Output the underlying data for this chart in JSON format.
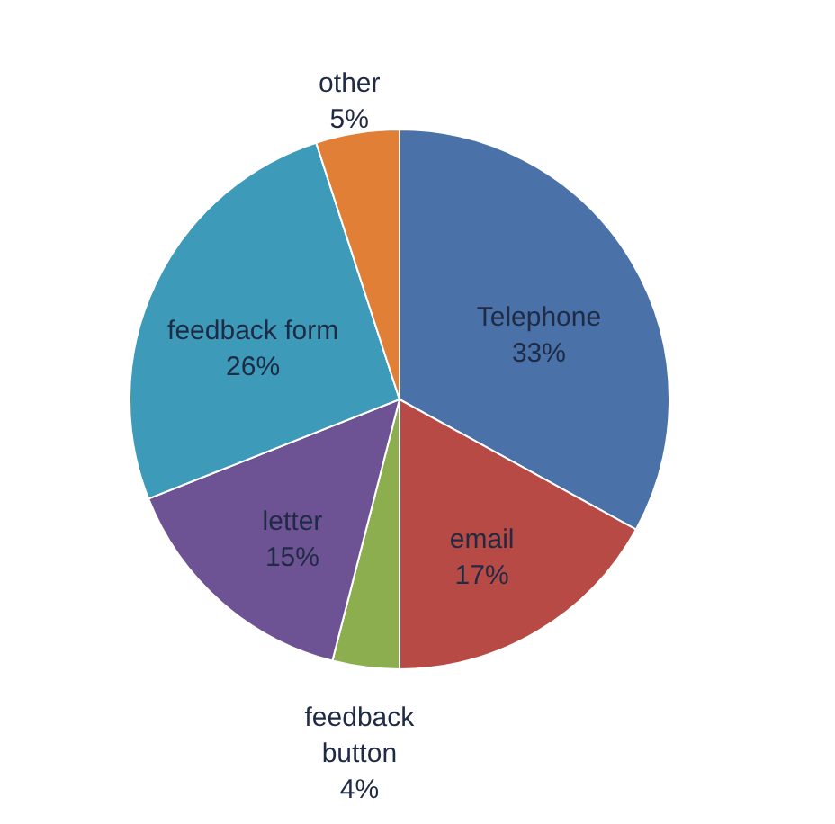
{
  "chart_data": {
    "type": "pie",
    "categories": [
      "Telephone",
      "email",
      "feedback button",
      "letter",
      "feedback form",
      "other"
    ],
    "values": [
      33,
      17,
      4,
      15,
      26,
      5
    ],
    "value_labels": [
      "33%",
      "17%",
      "4%",
      "15%",
      "26%",
      "5%"
    ],
    "colors": [
      "#4a72a8",
      "#b84a45",
      "#8dae4f",
      "#6e5394",
      "#3d9ab8",
      "#e07f35"
    ],
    "legend": false
  }
}
